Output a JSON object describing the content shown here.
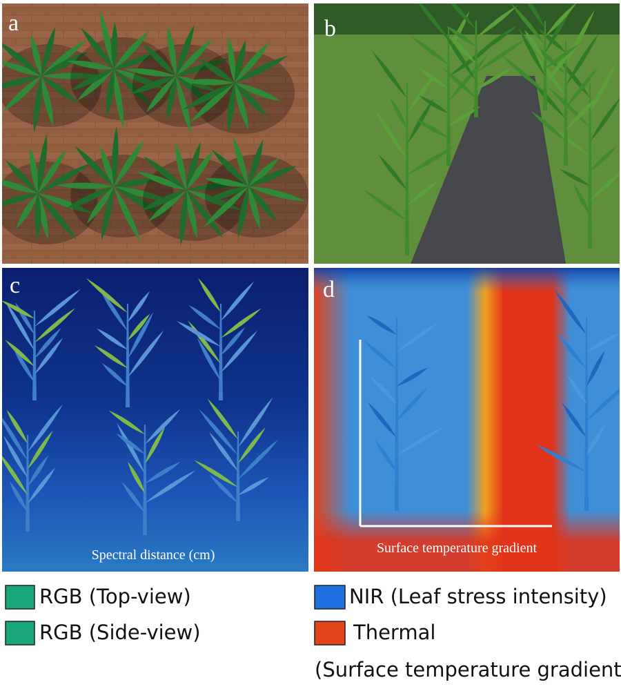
{
  "panels": [
    {
      "label": "a"
    },
    {
      "label": "b"
    },
    {
      "label": "c",
      "caption": "Spectral distance (cm)"
    },
    {
      "label": "d",
      "caption": "Surface temperature gradient"
    }
  ],
  "legend": [
    {
      "label": "RGB (Top-view)",
      "color": "#17a579"
    },
    {
      "label": "RGB (Side-view)",
      "color": "#17a579"
    },
    {
      "label": "NIR (Leaf stress intensity)",
      "color": "#1f6fe0"
    },
    {
      "label": "Thermal",
      "color": "#e2441c"
    }
  ],
  "legend_note": "(Surface temperature gradient)"
}
